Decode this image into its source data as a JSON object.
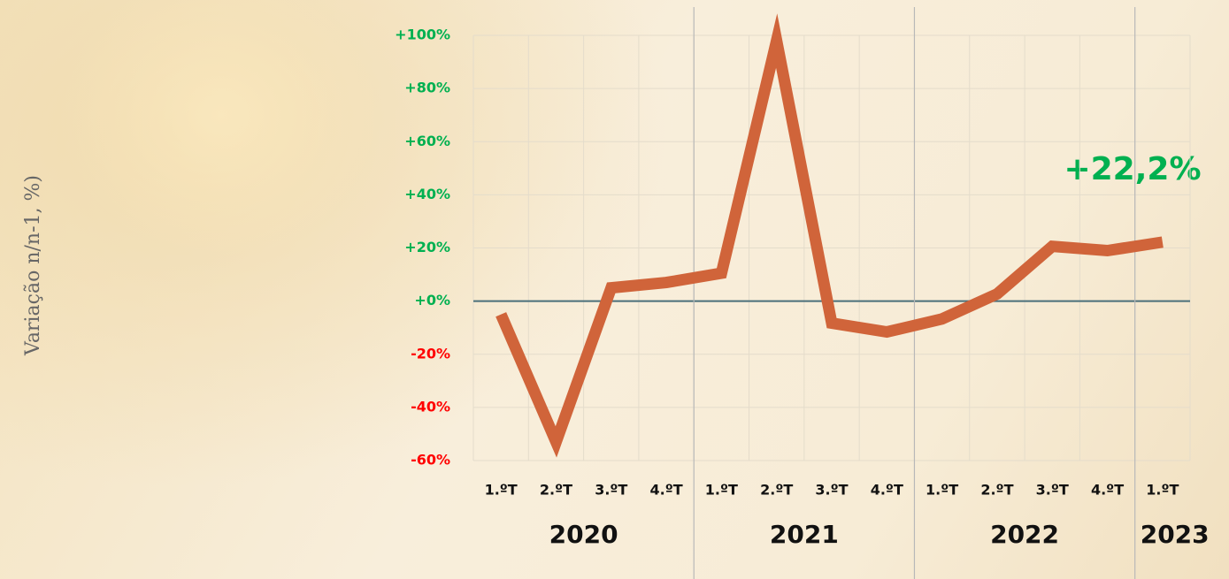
{
  "chart_data": {
    "type": "line",
    "y_label": "Variação n/n-1, %)",
    "annotation": "+22,2%",
    "groups": [
      {
        "label": "2020",
        "categories": [
          "1.ºT",
          "2.ºT",
          "3.ºT",
          "4.ºT"
        ]
      },
      {
        "label": "2021",
        "categories": [
          "1.ºT",
          "2.ºT",
          "3.ºT",
          "4.ºT"
        ]
      },
      {
        "label": "2022",
        "categories": [
          "1.ºT",
          "2.ºT",
          "3.ºT",
          "4.ºT"
        ]
      },
      {
        "label": "2023",
        "categories": [
          "1.ºT"
        ]
      }
    ],
    "values": [
      -5,
      -53,
      5,
      7,
      10.5,
      98,
      -8.3,
      -11.6,
      -6.7,
      2.7,
      20.6,
      19,
      22.2
    ],
    "color": "#d0643a",
    "ylim": [
      -60,
      100
    ],
    "yticks": [
      {
        "value": -60,
        "label": "-60%"
      },
      {
        "value": -40,
        "label": "-40%"
      },
      {
        "value": -20,
        "label": "-20%"
      },
      {
        "value": 0,
        "label": "+0%"
      },
      {
        "value": 20,
        "label": "+20%"
      },
      {
        "value": 40,
        "label": "+40%"
      },
      {
        "value": 60,
        "label": "+60%"
      },
      {
        "value": 80,
        "label": "+80%"
      },
      {
        "value": 100,
        "label": "+100%"
      }
    ],
    "positive_color": "#00b050",
    "negative_color": "#ff0000",
    "grid": true
  }
}
